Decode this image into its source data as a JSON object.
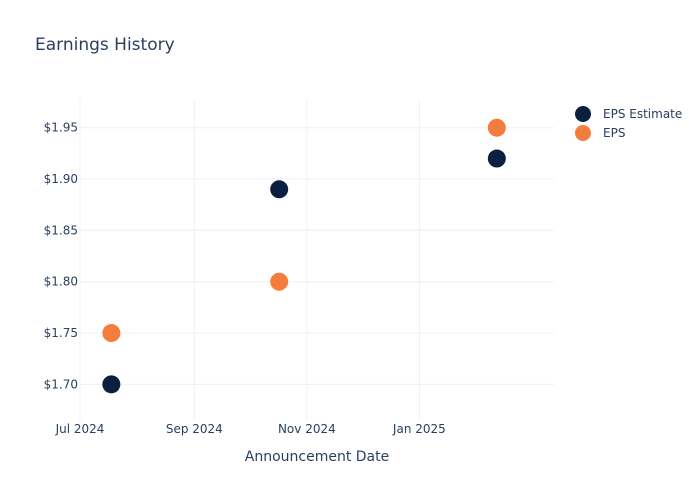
{
  "chart_data": {
    "type": "scatter",
    "title": "Earnings History",
    "xlabel": "Announcement Date",
    "ylabel": "",
    "x_ticks": [
      "Jul 2024",
      "Sep 2024",
      "Nov 2024",
      "Jan 2025"
    ],
    "y_ticks": [
      "$1.70",
      "$1.75",
      "$1.80",
      "$1.85",
      "$1.90",
      "$1.95"
    ],
    "ylim": [
      1.675,
      1.977
    ],
    "xlim": [
      "2024-07-01",
      "2025-03-15"
    ],
    "grid": true,
    "legend_position": "top-right",
    "series": [
      {
        "name": "EPS Estimate",
        "color": "#0b1f3f",
        "points": [
          {
            "x": "2024-07-18",
            "y": 1.7
          },
          {
            "x": "2024-10-17",
            "y": 1.89
          },
          {
            "x": "2025-02-12",
            "y": 1.92
          }
        ]
      },
      {
        "name": "EPS",
        "color": "#f47c3c",
        "points": [
          {
            "x": "2024-07-18",
            "y": 1.75
          },
          {
            "x": "2024-10-17",
            "y": 1.8
          },
          {
            "x": "2025-02-12",
            "y": 1.95
          }
        ]
      }
    ]
  }
}
